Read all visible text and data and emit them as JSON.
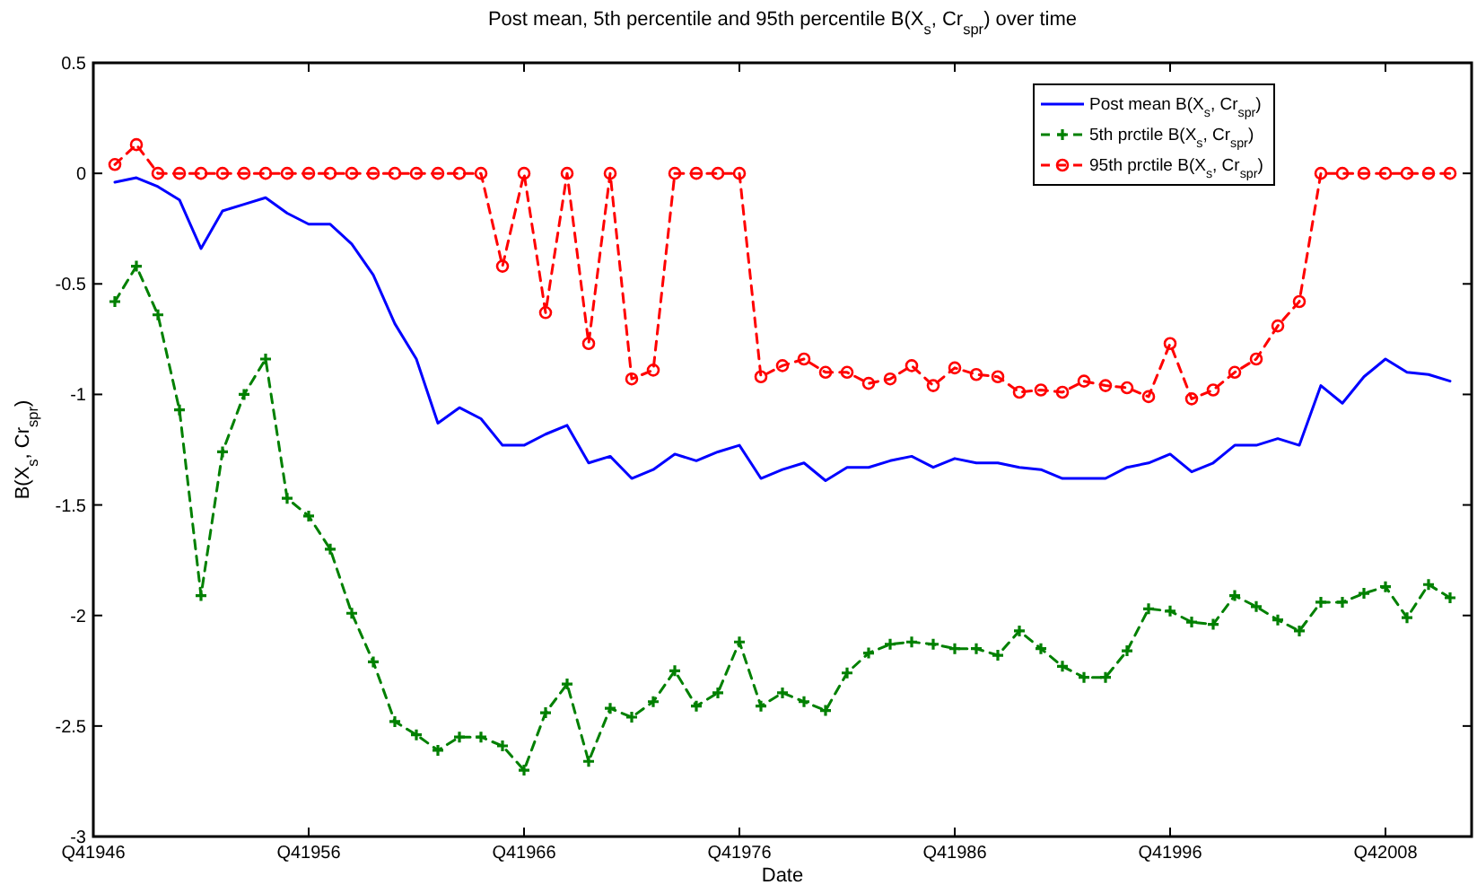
{
  "chart_data": {
    "type": "line",
    "title": "Post mean, 5th percentile and 95th percentile B(X$_{s}$, Cr$_{spr}$) over time",
    "xlabel": "Date",
    "ylabel": "B(X$_{s}$, Cr$_{spr}$)",
    "categories": [
      "Q41946",
      null,
      null,
      null,
      null,
      null,
      null,
      null,
      null,
      null,
      "Q41956",
      null,
      null,
      null,
      null,
      null,
      null,
      null,
      null,
      null,
      "Q41966",
      null,
      null,
      null,
      null,
      null,
      null,
      null,
      null,
      null,
      "Q41976",
      null,
      null,
      null,
      null,
      null,
      null,
      null,
      null,
      null,
      "Q41986",
      null,
      null,
      null,
      null,
      null,
      null,
      null,
      null,
      null,
      "Q41996",
      null,
      null,
      null,
      null,
      null,
      null,
      null,
      null,
      null,
      "Q42008",
      null,
      null,
      null
    ],
    "ylim": [
      -3,
      0.5
    ],
    "yticks": [
      0.5,
      0,
      -0.5,
      -1,
      -1.5,
      -2,
      -2.5,
      -3
    ],
    "grid": false,
    "legend": "top right",
    "series": [
      {
        "name": "Post mean B(X$_{s}$, Cr$_{spr}$)",
        "color": "#0000ff",
        "marker": "none",
        "line_style": "solid",
        "values": [
          null,
          -0.04,
          -0.02,
          -0.06,
          -0.12,
          -0.34,
          -0.17,
          -0.14,
          -0.11,
          -0.18,
          -0.23,
          -0.23,
          -0.32,
          -0.46,
          -0.68,
          -0.84,
          -1.13,
          -1.06,
          -1.11,
          -1.23,
          -1.23,
          -1.18,
          -1.14,
          -1.31,
          -1.28,
          -1.38,
          -1.34,
          -1.27,
          -1.3,
          -1.26,
          -1.23,
          -1.38,
          -1.34,
          -1.31,
          -1.39,
          -1.33,
          -1.33,
          -1.3,
          -1.28,
          -1.33,
          -1.29,
          -1.31,
          -1.31,
          -1.33,
          -1.34,
          -1.38,
          -1.38,
          -1.38,
          -1.33,
          -1.31,
          -1.27,
          -1.35,
          -1.31,
          -1.23,
          -1.23,
          -1.2,
          -1.23,
          -0.96,
          -1.04,
          -0.92,
          -0.84,
          -0.9,
          -0.91,
          -0.94
        ]
      },
      {
        "name": "5th prctile B(X$_{s}$, Cr$_{spr}$)",
        "color": "#008000",
        "marker": "cross",
        "line_style": "dashed",
        "values": [
          null,
          -0.58,
          -0.42,
          -0.64,
          -1.07,
          -1.91,
          -1.26,
          -1.0,
          -0.84,
          -1.47,
          -1.55,
          -1.7,
          -1.99,
          -2.21,
          -2.48,
          -2.54,
          -2.61,
          -2.55,
          -2.55,
          -2.59,
          -2.7,
          -2.44,
          -2.31,
          -2.66,
          -2.42,
          -2.46,
          -2.39,
          -2.25,
          -2.41,
          -2.35,
          -2.12,
          -2.41,
          -2.35,
          -2.39,
          -2.43,
          -2.26,
          -2.17,
          -2.13,
          -2.12,
          -2.13,
          -2.15,
          -2.15,
          -2.18,
          -2.07,
          -2.15,
          -2.23,
          -2.28,
          -2.28,
          -2.16,
          -1.97,
          -1.98,
          -2.03,
          -2.04,
          -1.91,
          -1.96,
          -2.02,
          -2.07,
          -1.94,
          -1.94,
          -1.9,
          -1.87,
          -2.01,
          -1.86,
          -1.92
        ]
      },
      {
        "name": "95th prctile B(X$_{s}$, Cr$_{spr}$)",
        "color": "#ff0000",
        "marker": "circle",
        "line_style": "dashed",
        "values": [
          null,
          0.04,
          0.13,
          0,
          0,
          0,
          0,
          0,
          0,
          0,
          0,
          0,
          0,
          0,
          0,
          0,
          0,
          0,
          0,
          -0.42,
          0,
          -0.63,
          0,
          -0.77,
          0,
          -0.93,
          -0.89,
          0,
          0,
          0,
          0,
          -0.92,
          -0.87,
          -0.84,
          -0.9,
          -0.9,
          -0.95,
          -0.93,
          -0.87,
          -0.96,
          -0.88,
          -0.91,
          -0.92,
          -0.99,
          -0.98,
          -0.99,
          -0.94,
          -0.96,
          -0.97,
          -1.01,
          -0.77,
          -1.02,
          -0.98,
          -0.9,
          -0.84,
          -0.69,
          -0.58,
          0,
          0,
          0,
          0,
          0,
          0,
          0
        ]
      }
    ]
  }
}
